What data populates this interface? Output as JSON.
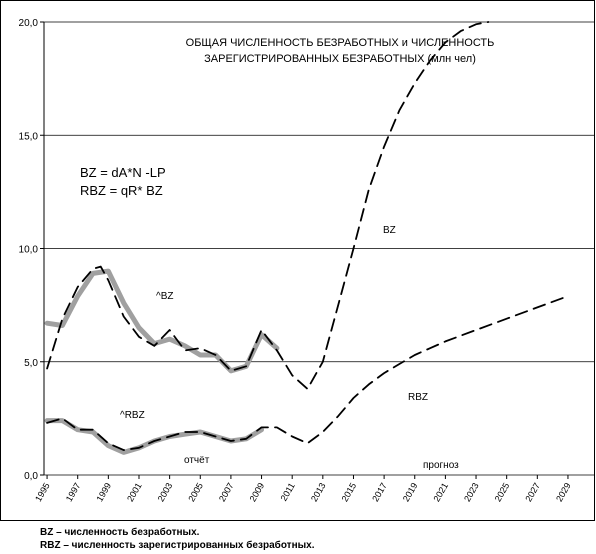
{
  "chart_data": {
    "type": "line",
    "title": [
      "ОБЩАЯ ЧИСЛЕННОСТЬ  БЕЗРАБОТНЫХ и ЧИСЛЕННОСТЬ",
      "ЗАРЕГИСТРИРОВАННЫХ  БЕЗРАБОТНЫХ  (млн чел)"
    ],
    "formulas": [
      "BZ  = dA*N -LP",
      "RBZ = qR* BZ"
    ],
    "annotations": [
      "BZ",
      "RBZ",
      "^BZ",
      "^RBZ",
      "отчёт",
      "прогноз"
    ],
    "footnotes": [
      "BZ – численность безработных.",
      "RBZ – численность зарегистрированных безработных."
    ],
    "xlim": [
      1994.8,
      2030.7
    ],
    "xticks": [
      1995,
      1997,
      1999,
      2001,
      2003,
      2005,
      2007,
      2009,
      2011,
      2013,
      2015,
      2017,
      2019,
      2021,
      2023,
      2025,
      2027,
      2029
    ],
    "ylim": [
      0,
      20
    ],
    "yticks": [
      {
        "value": 0,
        "label": "0,0"
      },
      {
        "value": 5,
        "label": "5,0"
      },
      {
        "value": 10,
        "label": "10,0"
      },
      {
        "value": 15,
        "label": "15,0"
      },
      {
        "value": 20,
        "label": "20,0"
      }
    ],
    "grid": true,
    "series": [
      {
        "name": "^BZ",
        "color": "#a0a0a0",
        "style": "solid",
        "x": [
          1995,
          1996,
          1997,
          1998,
          1999,
          2000,
          2001,
          2002,
          2003,
          2004,
          2005,
          2006,
          2007,
          2008,
          2009,
          2010
        ],
        "values": [
          6.7,
          6.6,
          7.9,
          8.9,
          9.0,
          7.6,
          6.5,
          5.8,
          6.0,
          5.7,
          5.3,
          5.3,
          4.6,
          4.8,
          6.2,
          5.6
        ]
      },
      {
        "name": "^RBZ",
        "color": "#a0a0a0",
        "style": "solid",
        "x": [
          1995,
          1996,
          1997,
          1998,
          1999,
          2000,
          2001,
          2002,
          2003,
          2004,
          2005,
          2006,
          2007,
          2008,
          2009
        ],
        "values": [
          2.4,
          2.4,
          2.0,
          1.9,
          1.3,
          1.0,
          1.2,
          1.5,
          1.7,
          1.8,
          1.9,
          1.7,
          1.5,
          1.6,
          2.0
        ]
      },
      {
        "name": "BZ",
        "color": "#000000",
        "style": "dashed",
        "x": [
          1995,
          1996,
          1997,
          1998,
          1998.5,
          1999,
          2000,
          2001,
          2002,
          2003,
          2004,
          2005,
          2006,
          2007,
          2008,
          2009,
          2010,
          2011,
          2012,
          2013,
          2014,
          2015,
          2016,
          2017,
          2018,
          2019,
          2020,
          2021,
          2022,
          2023,
          2023.8
        ],
        "values": [
          4.7,
          6.9,
          8.3,
          9.1,
          9.2,
          8.6,
          7.0,
          6.1,
          5.7,
          6.4,
          5.5,
          5.6,
          5.3,
          4.6,
          4.8,
          6.4,
          5.5,
          4.4,
          3.8,
          5.0,
          7.5,
          10.0,
          12.6,
          14.5,
          16.1,
          17.3,
          18.3,
          19.1,
          19.6,
          19.9,
          20.0
        ]
      },
      {
        "name": "RBZ",
        "color": "#000000",
        "style": "dashed",
        "x": [
          1995,
          1996,
          1997,
          1998,
          1999,
          2000,
          2001,
          2002,
          2003,
          2004,
          2005,
          2006,
          2007,
          2008,
          2009,
          2010,
          2011,
          2012,
          2013,
          2014,
          2015,
          2016,
          2017,
          2018,
          2019,
          2020,
          2021,
          2023,
          2025,
          2027,
          2029
        ],
        "values": [
          2.3,
          2.5,
          2.0,
          2.0,
          1.4,
          1.1,
          1.2,
          1.5,
          1.7,
          1.9,
          1.9,
          1.7,
          1.5,
          1.6,
          2.1,
          2.1,
          1.7,
          1.4,
          1.9,
          2.6,
          3.4,
          4.0,
          4.5,
          4.9,
          5.3,
          5.6,
          5.9,
          6.4,
          6.9,
          7.4,
          7.9
        ]
      }
    ]
  }
}
